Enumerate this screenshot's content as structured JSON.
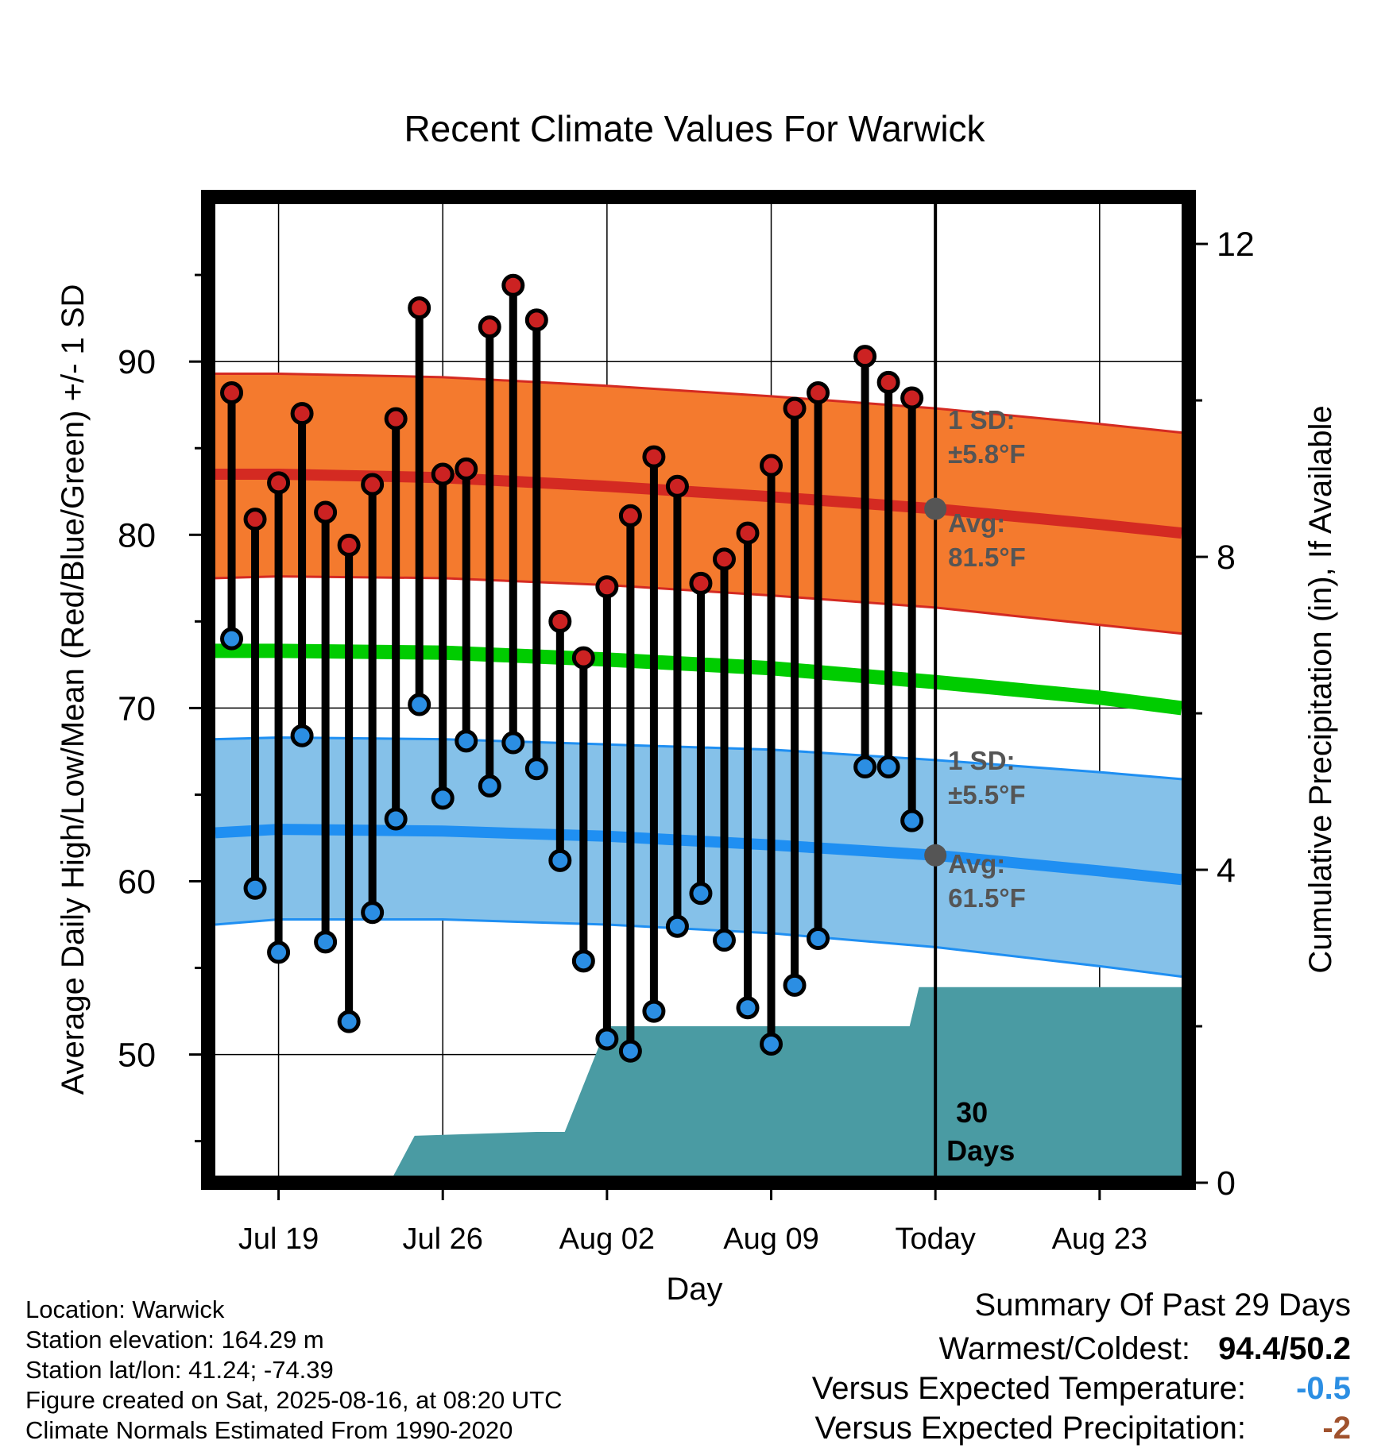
{
  "chart_data": {
    "type": "line",
    "title": "Recent Climate Values For Warwick",
    "xlabel": "Day",
    "ylabel": "Average Daily High/Low/Mean (Red/Blue/Green) +/- 1 SD",
    "y2label": "Cumulative Precipitation (in), If Available",
    "grid": true,
    "xlim": [
      -3,
      38.8
    ],
    "ylim": [
      42.6,
      99.5
    ],
    "y2lim": [
      0,
      12.6
    ],
    "x_tick_values": [
      0,
      7,
      14,
      21,
      28,
      35
    ],
    "x_tick_labels": [
      "Jul 19",
      "Jul 26",
      "Aug 02",
      "Aug 09",
      "Today",
      "Aug 23"
    ],
    "y_ticks": [
      50,
      60,
      70,
      80,
      90
    ],
    "y2_ticks": [
      0,
      4,
      8,
      12
    ],
    "today_x": 28,
    "days": [
      -2,
      -1,
      0,
      1,
      2,
      3,
      4,
      5,
      6,
      7,
      8,
      9,
      10,
      11,
      12,
      13,
      14,
      15,
      16,
      17,
      18,
      19,
      20,
      21,
      22,
      23,
      24,
      25,
      26,
      27
    ],
    "highs": [
      88.2,
      80.9,
      83.0,
      87.0,
      81.3,
      79.4,
      82.9,
      86.7,
      93.1,
      83.5,
      83.8,
      92.0,
      94.4,
      92.4,
      75.0,
      72.9,
      77.0,
      81.1,
      84.5,
      82.8,
      77.2,
      78.6,
      80.1,
      84.0,
      87.3,
      88.2,
      null,
      90.3,
      88.8,
      87.9
    ],
    "lows": [
      74.0,
      59.6,
      55.9,
      68.4,
      56.5,
      51.9,
      58.2,
      63.6,
      70.2,
      64.8,
      68.1,
      65.5,
      68.0,
      66.5,
      61.2,
      55.4,
      50.9,
      50.2,
      52.5,
      57.4,
      59.3,
      56.6,
      52.7,
      50.6,
      54.0,
      56.7,
      null,
      66.6,
      66.6,
      63.5
    ],
    "normal_high": {
      "x": [
        -3,
        0,
        7,
        14,
        21,
        28,
        35,
        38.6
      ],
      "avg": [
        83.5,
        83.5,
        83.3,
        82.8,
        82.2,
        81.5,
        80.6,
        80.1
      ],
      "upper": [
        89.3,
        89.3,
        89.1,
        88.6,
        88.0,
        87.3,
        86.4,
        85.9
      ],
      "lower": [
        77.5,
        77.6,
        77.5,
        77.1,
        76.5,
        75.8,
        74.8,
        74.3
      ]
    },
    "normal_mean": {
      "x": [
        -3,
        0,
        7,
        14,
        21,
        28,
        35,
        38.6
      ],
      "values": [
        73.3,
        73.3,
        73.2,
        72.8,
        72.3,
        71.5,
        70.6,
        70.0
      ]
    },
    "normal_low": {
      "x": [
        -3,
        0,
        7,
        14,
        21,
        28,
        35,
        38.6
      ],
      "avg": [
        62.8,
        63.0,
        62.9,
        62.6,
        62.1,
        61.5,
        60.6,
        60.1
      ],
      "upper": [
        68.2,
        68.3,
        68.2,
        67.9,
        67.6,
        67.0,
        66.3,
        65.9
      ],
      "lower": [
        57.5,
        57.8,
        57.8,
        57.5,
        57.0,
        56.2,
        55.1,
        54.5
      ]
    },
    "precip_cumulative": {
      "x": [
        -3,
        2.0,
        4.9,
        5.8,
        11.0,
        12.2,
        14.0,
        23.0,
        26.9,
        27.3,
        28.0,
        38.6
      ],
      "values": [
        0,
        0,
        0,
        0.6,
        0.65,
        0.65,
        2.0,
        2.0,
        2.0,
        2.5,
        2.5,
        2.5
      ]
    },
    "annotations": {
      "high_sd": "1 SD:",
      "high_sd_value": "±5.8°F",
      "high_avg": "Avg:",
      "high_avg_value": "81.5°F",
      "low_sd": "1 SD:",
      "low_sd_value": "±5.5°F",
      "low_avg": "Avg:",
      "low_avg_value": "61.5°F",
      "days_line1": "30",
      "days_line2": "Days"
    },
    "colors": {
      "high_band": "#f47a2e",
      "high_avg": "#d42a22",
      "mean_line": "#00cc00",
      "low_band": "#85c1e9",
      "low_avg": "#1f8ff2",
      "precip": "#4a9ba3",
      "high_marker": "#cc2222",
      "low_marker": "#2b8ee3",
      "avg_dot": "#555555"
    }
  },
  "footer": {
    "location": "Location: Warwick",
    "elevation": "Station elevation: 164.29 m",
    "latlon": "Station lat/lon: 41.24; -74.39",
    "created": "Figure created on Sat, 2025-08-16, at 08:20 UTC",
    "normals": "Climate Normals Estimated From 1990-2020"
  },
  "summary": {
    "title": "Summary Of Past 29 Days",
    "warm_cold_label": "Warmest/Coldest:",
    "warm_cold_value": "94.4/50.2",
    "temp_label": "Versus Expected Temperature:",
    "temp_value": "-0.5",
    "precip_label": "Versus Expected Precipitation:",
    "precip_value": "-2",
    "temp_color": "#2b8ee3",
    "precip_color": "#a0522d"
  }
}
